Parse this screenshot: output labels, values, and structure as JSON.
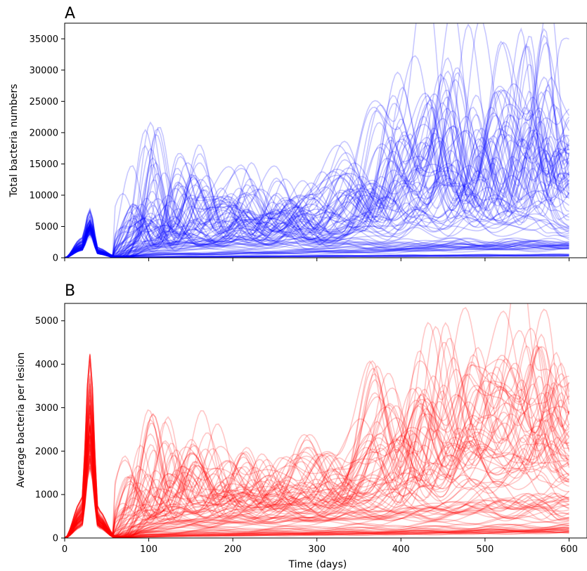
{
  "figure": {
    "panels": [
      {
        "id": "A",
        "label": "A",
        "ylabel": "Total bacteria numbers",
        "color": "#0000ff"
      },
      {
        "id": "B",
        "label": "B",
        "ylabel": "Average bacteria per lesion",
        "color": "#ff0000"
      }
    ],
    "xlabel": "Time (days)"
  },
  "chart_data": [
    {
      "type": "line",
      "panel": "A",
      "title": "",
      "xlabel": "",
      "ylabel": "Total bacteria numbers",
      "xlim": [
        0,
        600
      ],
      "ylim": [
        0,
        37500
      ],
      "xticks": [
        0,
        100,
        200,
        300,
        400,
        500,
        600
      ],
      "xtick_labels_shown": false,
      "yticks": [
        0,
        5000,
        10000,
        15000,
        20000,
        25000,
        30000,
        35000
      ],
      "ytick_labels": [
        "0",
        "5000",
        "10000",
        "15000",
        "20000",
        "25000",
        "30000",
        "35000"
      ],
      "grid": false,
      "legend": null,
      "series_color": "#0000ff",
      "series_count_approx": 100,
      "series": [
        {
          "x": [
            0,
            20,
            30,
            40,
            60,
            90,
            115,
            140,
            170,
            200,
            230,
            260,
            300,
            340,
            380,
            410,
            440,
            470,
            500,
            530,
            560,
            580,
            600
          ],
          "y": [
            0,
            3000,
            7500,
            1500,
            300,
            11500,
            2000,
            7000,
            3000,
            5000,
            8000,
            11000,
            3000,
            6000,
            25000,
            18000,
            35000,
            12000,
            31000,
            15000,
            36000,
            17000,
            26000
          ]
        },
        {
          "x": [
            0,
            20,
            30,
            40,
            60,
            90,
            115,
            140,
            170,
            200,
            230,
            260,
            300,
            340,
            380,
            410,
            440,
            470,
            500,
            530,
            560,
            580,
            600
          ],
          "y": [
            0,
            2500,
            6000,
            1200,
            200,
            3000,
            18500,
            5000,
            16000,
            4000,
            12000,
            6000,
            9000,
            17000,
            7000,
            22000,
            12000,
            26000,
            14000,
            30000,
            20000,
            27000,
            21000
          ]
        },
        {
          "x": [
            0,
            20,
            30,
            40,
            60,
            90,
            115,
            140,
            170,
            200,
            230,
            260,
            300,
            340,
            380,
            410,
            440,
            470,
            500,
            530,
            560,
            580,
            600
          ],
          "y": [
            0,
            2000,
            5000,
            1000,
            200,
            7000,
            3000,
            15000,
            6000,
            9000,
            4000,
            10000,
            5000,
            12000,
            9000,
            16000,
            21000,
            10000,
            17000,
            8000,
            23000,
            12000,
            15000
          ]
        },
        {
          "x": [
            0,
            20,
            30,
            40,
            60,
            90,
            115,
            140,
            170,
            200,
            230,
            260,
            300,
            340,
            380,
            410,
            440,
            470,
            500,
            530,
            560,
            580,
            600
          ],
          "y": [
            0,
            1800,
            5500,
            900,
            200,
            5000,
            8000,
            4000,
            9000,
            12000,
            7000,
            4000,
            11000,
            6000,
            15000,
            8000,
            14000,
            18000,
            9000,
            19000,
            11000,
            22000,
            10000
          ]
        },
        {
          "x": [
            0,
            20,
            30,
            40,
            60,
            90,
            115,
            140,
            170,
            200,
            230,
            260,
            300,
            340,
            380,
            410,
            440,
            470,
            500,
            530,
            560,
            580,
            600
          ],
          "y": [
            0,
            1500,
            4500,
            800,
            100,
            2500,
            3500,
            4000,
            3000,
            5000,
            3500,
            6000,
            4000,
            7000,
            5000,
            9000,
            6000,
            10000,
            7000,
            8000,
            9000,
            6000,
            5000
          ]
        },
        {
          "x": [
            0,
            20,
            30,
            40,
            60,
            90,
            115,
            140,
            170,
            200,
            230,
            260,
            300,
            340,
            380,
            410,
            440,
            470,
            500,
            530,
            560,
            580,
            600
          ],
          "y": [
            0,
            1500,
            5200,
            800,
            100,
            1200,
            1800,
            2000,
            2200,
            2500,
            2300,
            2800,
            2500,
            2600,
            2000,
            2400,
            2200,
            2600,
            2100,
            2500,
            2300,
            2400,
            2200
          ]
        },
        {
          "x": [
            0,
            20,
            30,
            40,
            60,
            90,
            115,
            140,
            170,
            200,
            230,
            260,
            300,
            340,
            380,
            410,
            440,
            470,
            500,
            530,
            560,
            580,
            600
          ],
          "y": [
            0,
            1500,
            5000,
            800,
            100,
            400,
            600,
            700,
            700,
            800,
            900,
            1000,
            1100,
            1200,
            1300,
            1500,
            1700,
            1800,
            2000,
            1900,
            2100,
            2000,
            2200
          ]
        },
        {
          "x": [
            0,
            20,
            30,
            40,
            60,
            90,
            115,
            140,
            170,
            200,
            230,
            260,
            300,
            340,
            380,
            410,
            440,
            470,
            500,
            530,
            560,
            580,
            600
          ],
          "y": [
            0,
            1400,
            4800,
            700,
            50,
            100,
            150,
            180,
            200,
            220,
            250,
            280,
            300,
            320,
            340,
            360,
            380,
            400,
            420,
            430,
            450,
            460,
            470
          ]
        }
      ]
    },
    {
      "type": "line",
      "panel": "B",
      "title": "",
      "xlabel": "Time (days)",
      "ylabel": "Average bacteria per lesion",
      "xlim": [
        0,
        620
      ],
      "ylim": [
        0,
        5400
      ],
      "xticks": [
        0,
        100,
        200,
        300,
        400,
        500,
        600
      ],
      "xtick_labels": [
        "0",
        "100",
        "200",
        "300",
        "400",
        "500",
        "600"
      ],
      "yticks": [
        0,
        1000,
        2000,
        3000,
        4000,
        5000
      ],
      "ytick_labels": [
        "0",
        "1000",
        "2000",
        "3000",
        "4000",
        "5000"
      ],
      "grid": false,
      "legend": null,
      "series_color": "#ff0000",
      "series_count_approx": 100,
      "series": [
        {
          "x": [
            0,
            20,
            30,
            40,
            60,
            90,
            115,
            140,
            170,
            200,
            230,
            260,
            300,
            340,
            380,
            410,
            440,
            470,
            500,
            530,
            560,
            580,
            600
          ],
          "y": [
            0,
            800,
            3950,
            600,
            50,
            1900,
            600,
            2100,
            900,
            1700,
            1200,
            1700,
            1000,
            2000,
            3200,
            1500,
            4350,
            2500,
            4450,
            3000,
            5100,
            3100,
            3750
          ]
        },
        {
          "x": [
            0,
            20,
            30,
            40,
            60,
            90,
            115,
            140,
            170,
            200,
            230,
            260,
            300,
            340,
            380,
            410,
            440,
            470,
            500,
            530,
            560,
            580,
            600
          ],
          "y": [
            0,
            700,
            3500,
            500,
            40,
            800,
            2650,
            1000,
            2300,
            900,
            1700,
            900,
            2000,
            1000,
            3600,
            1800,
            3800,
            2400,
            3400,
            4000,
            2800,
            3800,
            2600
          ]
        },
        {
          "x": [
            0,
            20,
            30,
            40,
            60,
            90,
            115,
            140,
            170,
            200,
            230,
            260,
            300,
            340,
            380,
            410,
            440,
            470,
            500,
            530,
            560,
            580,
            600
          ],
          "y": [
            0,
            600,
            3000,
            450,
            30,
            1300,
            800,
            1900,
            1200,
            1500,
            900,
            1400,
            1600,
            1200,
            2000,
            2900,
            1900,
            3500,
            2300,
            3200,
            2600,
            3300,
            2200
          ]
        },
        {
          "x": [
            0,
            20,
            30,
            40,
            60,
            90,
            115,
            140,
            170,
            200,
            230,
            260,
            300,
            340,
            380,
            410,
            440,
            470,
            500,
            530,
            560,
            580,
            600
          ],
          "y": [
            0,
            500,
            2800,
            400,
            30,
            600,
            900,
            800,
            1100,
            1200,
            1000,
            1300,
            900,
            1500,
            1300,
            2100,
            1600,
            2600,
            1900,
            2200,
            2800,
            1800,
            2000
          ]
        },
        {
          "x": [
            0,
            20,
            30,
            40,
            60,
            90,
            115,
            140,
            170,
            200,
            230,
            260,
            300,
            340,
            380,
            410,
            440,
            470,
            500,
            530,
            560,
            580,
            600
          ],
          "y": [
            0,
            500,
            2600,
            400,
            30,
            300,
            500,
            600,
            500,
            700,
            600,
            800,
            600,
            900,
            700,
            1000,
            800,
            900,
            1100,
            800,
            1000,
            700,
            900
          ]
        },
        {
          "x": [
            0,
            20,
            30,
            40,
            60,
            90,
            115,
            140,
            170,
            200,
            230,
            260,
            300,
            340,
            380,
            410,
            440,
            470,
            500,
            530,
            560,
            580,
            600
          ],
          "y": [
            0,
            400,
            2400,
            350,
            20,
            150,
            250,
            300,
            350,
            400,
            380,
            420,
            450,
            500,
            480,
            550,
            600,
            650,
            700,
            750,
            800,
            780,
            700
          ]
        },
        {
          "x": [
            0,
            20,
            30,
            40,
            60,
            90,
            115,
            140,
            170,
            200,
            230,
            260,
            300,
            340,
            380,
            410,
            440,
            470,
            500,
            530,
            560,
            580,
            600
          ],
          "y": [
            0,
            400,
            2200,
            300,
            20,
            100,
            120,
            140,
            150,
            160,
            170,
            180,
            190,
            200,
            210,
            220,
            230,
            240,
            250,
            260,
            270,
            280,
            290
          ]
        },
        {
          "x": [
            0,
            20,
            30,
            40,
            60,
            90,
            115,
            140,
            170,
            200,
            230,
            260,
            300,
            340,
            380,
            410,
            440,
            470,
            500,
            530,
            560,
            580,
            600
          ],
          "y": [
            0,
            300,
            2000,
            300,
            10,
            40,
            60,
            70,
            80,
            90,
            100,
            110,
            120,
            130,
            140,
            150,
            160,
            170,
            180,
            190,
            200,
            210,
            220
          ]
        }
      ]
    }
  ]
}
